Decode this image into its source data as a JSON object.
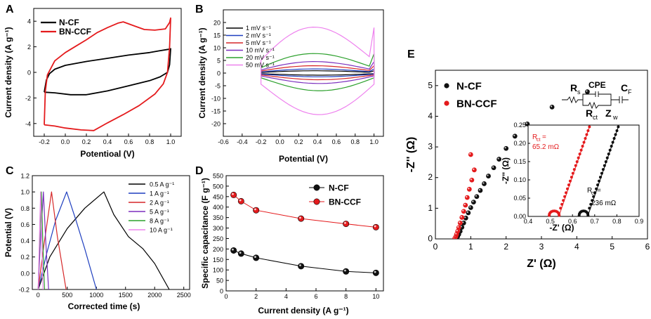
{
  "chart_data": [
    {
      "id": "A",
      "type": "line",
      "panel": "A",
      "xlabel": "Potentioal (V)",
      "ylabel": "Current density (A g⁻¹)",
      "xlim": [
        -0.3,
        1.1
      ],
      "ylim": [
        -5,
        5
      ],
      "xticks": [
        -0.2,
        0.0,
        0.2,
        0.4,
        0.6,
        0.8,
        1.0
      ],
      "xtick_labels": [
        "-0.2",
        "0.0",
        "0.2",
        "0.4",
        "0.6",
        "0.8",
        "1.0"
      ],
      "yticks": [
        -4,
        -2,
        0,
        2,
        4
      ],
      "ytick_labels": [
        "-4",
        "-2",
        "0",
        "2",
        "4"
      ],
      "legend": [
        "N-CF",
        "BN-CCF"
      ],
      "series": [
        {
          "name": "N-CF",
          "color": "#000000",
          "points": [
            [
              -0.2,
              -1.55
            ],
            [
              -0.18,
              -0.6
            ],
            [
              -0.15,
              -0.1
            ],
            [
              -0.1,
              0.25
            ],
            [
              0.0,
              0.55
            ],
            [
              0.2,
              0.85
            ],
            [
              0.4,
              1.1
            ],
            [
              0.6,
              1.35
            ],
            [
              0.8,
              1.55
            ],
            [
              0.9,
              1.7
            ],
            [
              0.98,
              1.8
            ],
            [
              1.0,
              1.85
            ],
            [
              0.99,
              0.6
            ],
            [
              0.97,
              0.0
            ],
            [
              0.9,
              -0.35
            ],
            [
              0.8,
              -0.65
            ],
            [
              0.6,
              -1.05
            ],
            [
              0.4,
              -1.45
            ],
            [
              0.2,
              -1.75
            ],
            [
              0.05,
              -1.75
            ],
            [
              -0.1,
              -1.6
            ],
            [
              -0.2,
              -1.55
            ]
          ]
        },
        {
          "name": "BN-CCF",
          "color": "#e41a1c",
          "points": [
            [
              -0.2,
              -4.1
            ],
            [
              -0.19,
              -1.5
            ],
            [
              -0.17,
              -0.2
            ],
            [
              -0.1,
              0.9
            ],
            [
              0.0,
              1.55
            ],
            [
              0.1,
              2.05
            ],
            [
              0.2,
              2.55
            ],
            [
              0.3,
              3.1
            ],
            [
              0.4,
              3.5
            ],
            [
              0.5,
              3.85
            ],
            [
              0.55,
              3.95
            ],
            [
              0.65,
              3.65
            ],
            [
              0.75,
              3.35
            ],
            [
              0.85,
              3.3
            ],
            [
              0.95,
              3.4
            ],
            [
              0.99,
              3.9
            ],
            [
              1.0,
              4.25
            ],
            [
              0.99,
              2.0
            ],
            [
              0.97,
              0.0
            ],
            [
              0.93,
              -0.9
            ],
            [
              0.85,
              -1.7
            ],
            [
              0.7,
              -2.6
            ],
            [
              0.55,
              -3.3
            ],
            [
              0.4,
              -3.95
            ],
            [
              0.27,
              -4.55
            ],
            [
              0.15,
              -4.5
            ],
            [
              0.0,
              -4.35
            ],
            [
              -0.1,
              -4.2
            ],
            [
              -0.2,
              -4.1
            ]
          ]
        }
      ]
    },
    {
      "id": "B",
      "type": "line",
      "panel": "B",
      "xlabel": "Potential (V)",
      "ylabel": "Current density (A g⁻¹)",
      "xlim": [
        -0.6,
        1.1
      ],
      "ylim": [
        -25,
        25
      ],
      "xticks": [
        -0.6,
        -0.4,
        -0.2,
        0.0,
        0.2,
        0.4,
        0.6,
        0.8,
        1.0
      ],
      "xtick_labels": [
        "-0.6",
        "-0.4",
        "-0.2",
        "0.0",
        "0.2",
        "0.4",
        "0.6",
        "0.8",
        "1.0"
      ],
      "yticks": [
        -20,
        -15,
        -10,
        -5,
        0,
        5,
        10,
        15,
        20
      ],
      "ytick_labels": [
        "-20",
        "-15",
        "-10",
        "-5",
        "0",
        "5",
        "10",
        "15",
        "20"
      ],
      "legend": [
        "1 mV s⁻¹",
        "2 mV s⁻¹",
        "5 mV s⁻¹",
        "10 mV s⁻¹",
        "20 mV s⁻¹",
        "50 mV s⁻¹"
      ],
      "series": [
        {
          "name": "1 mV s⁻¹",
          "color": "#000000",
          "amp": 1.0
        },
        {
          "name": "2 mV s⁻¹",
          "color": "#1f3fbf",
          "amp": 1.8
        },
        {
          "name": "5 mV s⁻¹",
          "color": "#d62728",
          "amp": 3.2
        },
        {
          "name": "10 mV s⁻¹",
          "color": "#7b2fbe",
          "amp": 5.0
        },
        {
          "name": "20 mV s⁻¹",
          "color": "#2ca02c",
          "amp": 8.5
        },
        {
          "name": "50 mV s⁻¹",
          "color": "#ee82ee",
          "amp": 20.0
        }
      ]
    },
    {
      "id": "C",
      "type": "line",
      "panel": "C",
      "xlabel": "Corrected time (s)",
      "ylabel": "Potential (V)",
      "xlim": [
        -100,
        2600
      ],
      "ylim": [
        -0.2,
        1.2
      ],
      "xticks": [
        0,
        500,
        1000,
        1500,
        2000,
        2500
      ],
      "xtick_labels": [
        "0",
        "500",
        "1000",
        "1500",
        "2000",
        "2500"
      ],
      "yticks": [
        -0.2,
        0.0,
        0.2,
        0.4,
        0.6,
        0.8,
        1.0,
        1.2
      ],
      "ytick_labels": [
        "-0.2",
        "0.0",
        "0.2",
        "0.4",
        "0.6",
        "0.8",
        "1.0",
        "1.2"
      ],
      "legend": [
        "0.5 A g⁻¹",
        "1 A g⁻¹",
        "2 A g⁻¹",
        "5 A g⁻¹",
        "8 A g⁻¹",
        "10 A g⁻¹"
      ],
      "series": [
        {
          "name": "0.5 A g⁻¹",
          "color": "#000000",
          "points": [
            [
              0,
              -0.2
            ],
            [
              200,
              0.2
            ],
            [
              500,
              0.55
            ],
            [
              800,
              0.8
            ],
            [
              1130,
              1.0
            ],
            [
              1300,
              0.72
            ],
            [
              1550,
              0.45
            ],
            [
              1800,
              0.3
            ],
            [
              2000,
              0.12
            ],
            [
              2250,
              -0.2
            ]
          ]
        },
        {
          "name": "1 A g⁻¹",
          "color": "#1f3fbf",
          "points": [
            [
              0,
              -0.2
            ],
            [
              150,
              0.25
            ],
            [
              300,
              0.65
            ],
            [
              490,
              1.0
            ],
            [
              650,
              0.65
            ],
            [
              800,
              0.3
            ],
            [
              1000,
              -0.2
            ]
          ]
        },
        {
          "name": "2 A g⁻¹",
          "color": "#d62728",
          "points": [
            [
              0,
              -0.2
            ],
            [
              100,
              0.35
            ],
            [
              230,
              1.0
            ],
            [
              330,
              0.45
            ],
            [
              480,
              -0.2
            ]
          ]
        },
        {
          "name": "5 A g⁻¹",
          "color": "#7b2fbe",
          "points": [
            [
              0,
              -0.2
            ],
            [
              40,
              0.4
            ],
            [
              90,
              1.0
            ],
            [
              130,
              0.4
            ],
            [
              180,
              -0.2
            ]
          ]
        },
        {
          "name": "8 A g⁻¹",
          "color": "#2ca02c",
          "points": [
            [
              0,
              -0.2
            ],
            [
              25,
              0.4
            ],
            [
              55,
              1.0
            ],
            [
              80,
              0.4
            ],
            [
              110,
              -0.2
            ]
          ]
        },
        {
          "name": "10 A g⁻¹",
          "color": "#ee82ee",
          "points": [
            [
              0,
              -0.2
            ],
            [
              20,
              0.4
            ],
            [
              42,
              1.0
            ],
            [
              62,
              0.4
            ],
            [
              85,
              -0.2
            ]
          ]
        }
      ]
    },
    {
      "id": "D",
      "type": "line",
      "panel": "D",
      "xlabel": "Current density (A g⁻¹)",
      "ylabel": "Specific capacitance (F g⁻¹)",
      "xlim": [
        0,
        10.5
      ],
      "ylim": [
        0,
        550
      ],
      "xticks": [
        0,
        2,
        4,
        6,
        8,
        10
      ],
      "xtick_labels": [
        "0",
        "2",
        "4",
        "6",
        "8",
        "10"
      ],
      "yticks": [
        0,
        50,
        100,
        150,
        200,
        250,
        300,
        350,
        400,
        450,
        500,
        550
      ],
      "ytick_labels": [
        "0",
        "50",
        "100",
        "150",
        "200",
        "250",
        "300",
        "350",
        "400",
        "450",
        "500",
        "550"
      ],
      "legend": [
        "N-CF",
        "BN-CCF"
      ],
      "x": [
        0.5,
        1,
        2,
        5,
        8,
        10
      ],
      "series": [
        {
          "name": "N-CF",
          "color": "#000000",
          "values": [
            193,
            178,
            158,
            118,
            93,
            86
          ]
        },
        {
          "name": "BN-CCF",
          "color": "#e41a1c",
          "values": [
            458,
            428,
            385,
            345,
            320,
            304
          ]
        }
      ]
    },
    {
      "id": "E",
      "type": "scatter",
      "panel": "E",
      "xlabel": "Z' (Ω)",
      "ylabel": "-Z'' (Ω)",
      "xlim": [
        0,
        6
      ],
      "ylim": [
        0,
        5.5
      ],
      "xticks": [
        0,
        1,
        2,
        3,
        4,
        5,
        6
      ],
      "xtick_labels": [
        "0",
        "1",
        "2",
        "3",
        "4",
        "5",
        "6"
      ],
      "yticks": [
        0,
        1,
        2,
        3,
        4,
        5
      ],
      "ytick_labels": [
        "0",
        "1",
        "2",
        "3",
        "4",
        "5"
      ],
      "legend": [
        "N-CF",
        "BN-CCF"
      ],
      "circuit_labels": [
        "R",
        "s",
        "CPE",
        "C",
        "F",
        "R",
        "ct",
        "Z",
        "w"
      ],
      "series": [
        {
          "name": "N-CF",
          "color": "#000000",
          "points": [
            [
              0.6,
              0.02
            ],
            [
              0.63,
              0.08
            ],
            [
              0.66,
              0.15
            ],
            [
              0.7,
              0.25
            ],
            [
              0.75,
              0.38
            ],
            [
              0.8,
              0.52
            ],
            [
              0.86,
              0.68
            ],
            [
              0.93,
              0.85
            ],
            [
              1.0,
              1.02
            ],
            [
              1.08,
              1.2
            ],
            [
              1.17,
              1.38
            ],
            [
              1.27,
              1.58
            ],
            [
              1.38,
              1.8
            ],
            [
              1.5,
              2.05
            ],
            [
              1.65,
              2.32
            ],
            [
              1.8,
              2.6
            ],
            [
              2.0,
              2.95
            ],
            [
              2.25,
              3.35
            ],
            [
              2.6,
              3.75
            ],
            [
              3.3,
              4.3
            ],
            [
              4.3,
              4.8
            ]
          ]
        },
        {
          "name": "BN-CCF",
          "color": "#e41a1c",
          "points": [
            [
              0.55,
              0.02
            ],
            [
              0.58,
              0.08
            ],
            [
              0.6,
              0.15
            ],
            [
              0.63,
              0.25
            ],
            [
              0.66,
              0.37
            ],
            [
              0.7,
              0.52
            ],
            [
              0.75,
              0.7
            ],
            [
              0.8,
              0.9
            ],
            [
              0.85,
              1.1
            ],
            [
              0.9,
              1.35
            ],
            [
              0.96,
              1.62
            ],
            [
              1.03,
              1.92
            ],
            [
              1.1,
              2.25
            ],
            [
              1.0,
              2.75
            ]
          ]
        }
      ],
      "inset": {
        "xlabel": "-Z' (Ω)",
        "ylabel": "-Z'' (Ω)",
        "xlim": [
          0.4,
          0.9
        ],
        "ylim": [
          0,
          0.25
        ],
        "xticks": [
          0.4,
          0.5,
          0.6,
          0.7,
          0.8,
          0.9
        ],
        "xtick_labels": [
          "0.4",
          "0.5",
          "0.6",
          "0.7",
          "0.8",
          "0.9"
        ],
        "yticks": [
          0.0,
          0.05,
          0.1,
          0.15,
          0.2,
          0.25
        ],
        "ytick_labels": [
          "0.00",
          "0.05",
          "0.10",
          "0.15",
          "0.20",
          "0.25"
        ],
        "annotations": [
          {
            "text": "R",
            "sub": "ct",
            "line1": " =",
            "line2": "65.2 mΩ",
            "color": "#e41a1c"
          },
          {
            "text": "R",
            "sub": "ct",
            "line1": " =",
            "line2": "236 mΩ",
            "color": "#000000"
          }
        ],
        "series": [
          {
            "name": "BN-CCF",
            "color": "#e41a1c",
            "x0": 0.495,
            "foot": 0.54
          },
          {
            "name": "N-CF",
            "color": "#000000",
            "x0": 0.63,
            "foot": 0.67
          }
        ]
      }
    }
  ]
}
